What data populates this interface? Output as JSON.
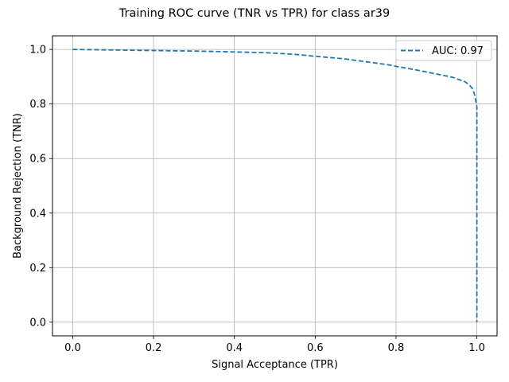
{
  "chart_data": {
    "type": "line",
    "title": "Training ROC curve (TNR vs TPR) for class ar39",
    "xlabel": "Signal Acceptance (TPR)",
    "ylabel": "Background Rejection (TNR)",
    "xlim": [
      -0.05,
      1.05
    ],
    "ylim": [
      -0.05,
      1.05
    ],
    "xticks": [
      0.0,
      0.2,
      0.4,
      0.6,
      0.8,
      1.0
    ],
    "xtick_labels": [
      "0.0",
      "0.2",
      "0.4",
      "0.6",
      "0.8",
      "1.0"
    ],
    "yticks": [
      0.0,
      0.2,
      0.4,
      0.6,
      0.8,
      1.0
    ],
    "ytick_labels": [
      "0.0",
      "0.2",
      "0.4",
      "0.6",
      "0.8",
      "1.0"
    ],
    "grid": true,
    "legend_position": "top-right",
    "series": [
      {
        "name": "AUC: 0.97",
        "color": "#1f77b4",
        "line_style": "dashed",
        "x": [
          0.0,
          0.05,
          0.1,
          0.2,
          0.3,
          0.4,
          0.48,
          0.55,
          0.6,
          0.67,
          0.72,
          0.78,
          0.8,
          0.85,
          0.9,
          0.94,
          0.97,
          0.98,
          0.99,
          0.995,
          1.0,
          1.0,
          1.0,
          1.0
        ],
        "y": [
          1.0,
          0.999,
          0.998,
          0.996,
          0.994,
          0.991,
          0.988,
          0.982,
          0.975,
          0.966,
          0.956,
          0.944,
          0.938,
          0.925,
          0.91,
          0.898,
          0.882,
          0.872,
          0.855,
          0.83,
          0.79,
          0.5,
          0.1,
          0.0
        ]
      }
    ]
  }
}
